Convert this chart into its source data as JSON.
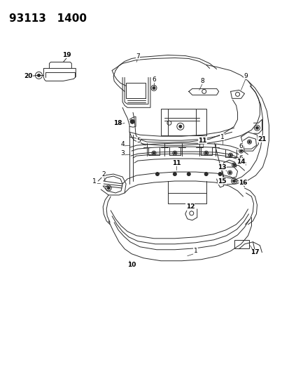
{
  "title_line1": "93113",
  "title_line2": "1400",
  "background_color": "#ffffff",
  "fig_width": 4.14,
  "fig_height": 5.33,
  "dpi": 100,
  "line_color": "#2a2a2a",
  "line_width": 0.7,
  "label_fontsize": 6.5,
  "title_fontsize": 11
}
